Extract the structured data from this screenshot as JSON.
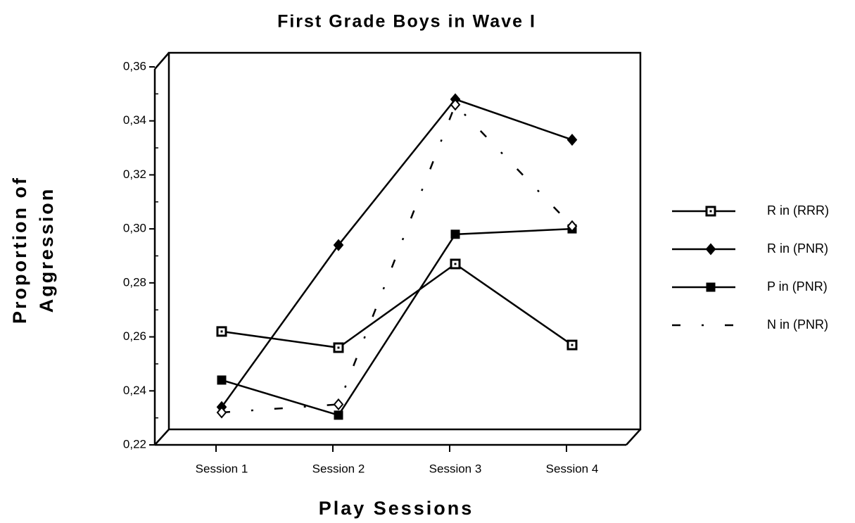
{
  "chart_data": {
    "type": "line",
    "title": "First Grade Boys in Wave I",
    "xlabel": "Play Sessions",
    "ylabel": [
      "Proportion of",
      "Aggression"
    ],
    "categories": [
      "Session 1",
      "Session 2",
      "Session 3",
      "Session 4"
    ],
    "ylim": [
      0.22,
      0.36
    ],
    "yticks": [
      {
        "value": 0.22,
        "label": "0,22"
      },
      {
        "value": 0.24,
        "label": "0,24"
      },
      {
        "value": 0.26,
        "label": "0,26"
      },
      {
        "value": 0.28,
        "label": "0,28"
      },
      {
        "value": 0.3,
        "label": "0,30"
      },
      {
        "value": 0.32,
        "label": "0,32"
      },
      {
        "value": 0.34,
        "label": "0,34"
      },
      {
        "value": 0.36,
        "label": "0,36"
      }
    ],
    "grid": false,
    "legend": "right",
    "series": [
      {
        "name": "R in (RRR)",
        "color": "#000000",
        "marker": "open-square",
        "dash": "solid",
        "values": [
          0.262,
          0.256,
          0.287,
          0.257
        ]
      },
      {
        "name": "R in (PNR)",
        "color": "#000000",
        "marker": "diamond",
        "dash": "solid",
        "values": [
          0.234,
          0.294,
          0.348,
          0.333
        ]
      },
      {
        "name": "P in (PNR)",
        "color": "#000000",
        "marker": "square",
        "dash": "solid",
        "values": [
          0.244,
          0.231,
          0.298,
          0.3
        ]
      },
      {
        "name": "N in (PNR)",
        "color": "#000000",
        "marker": "open-diamond",
        "dash": "dashed",
        "values": [
          0.232,
          0.235,
          0.346,
          0.301
        ]
      }
    ]
  }
}
